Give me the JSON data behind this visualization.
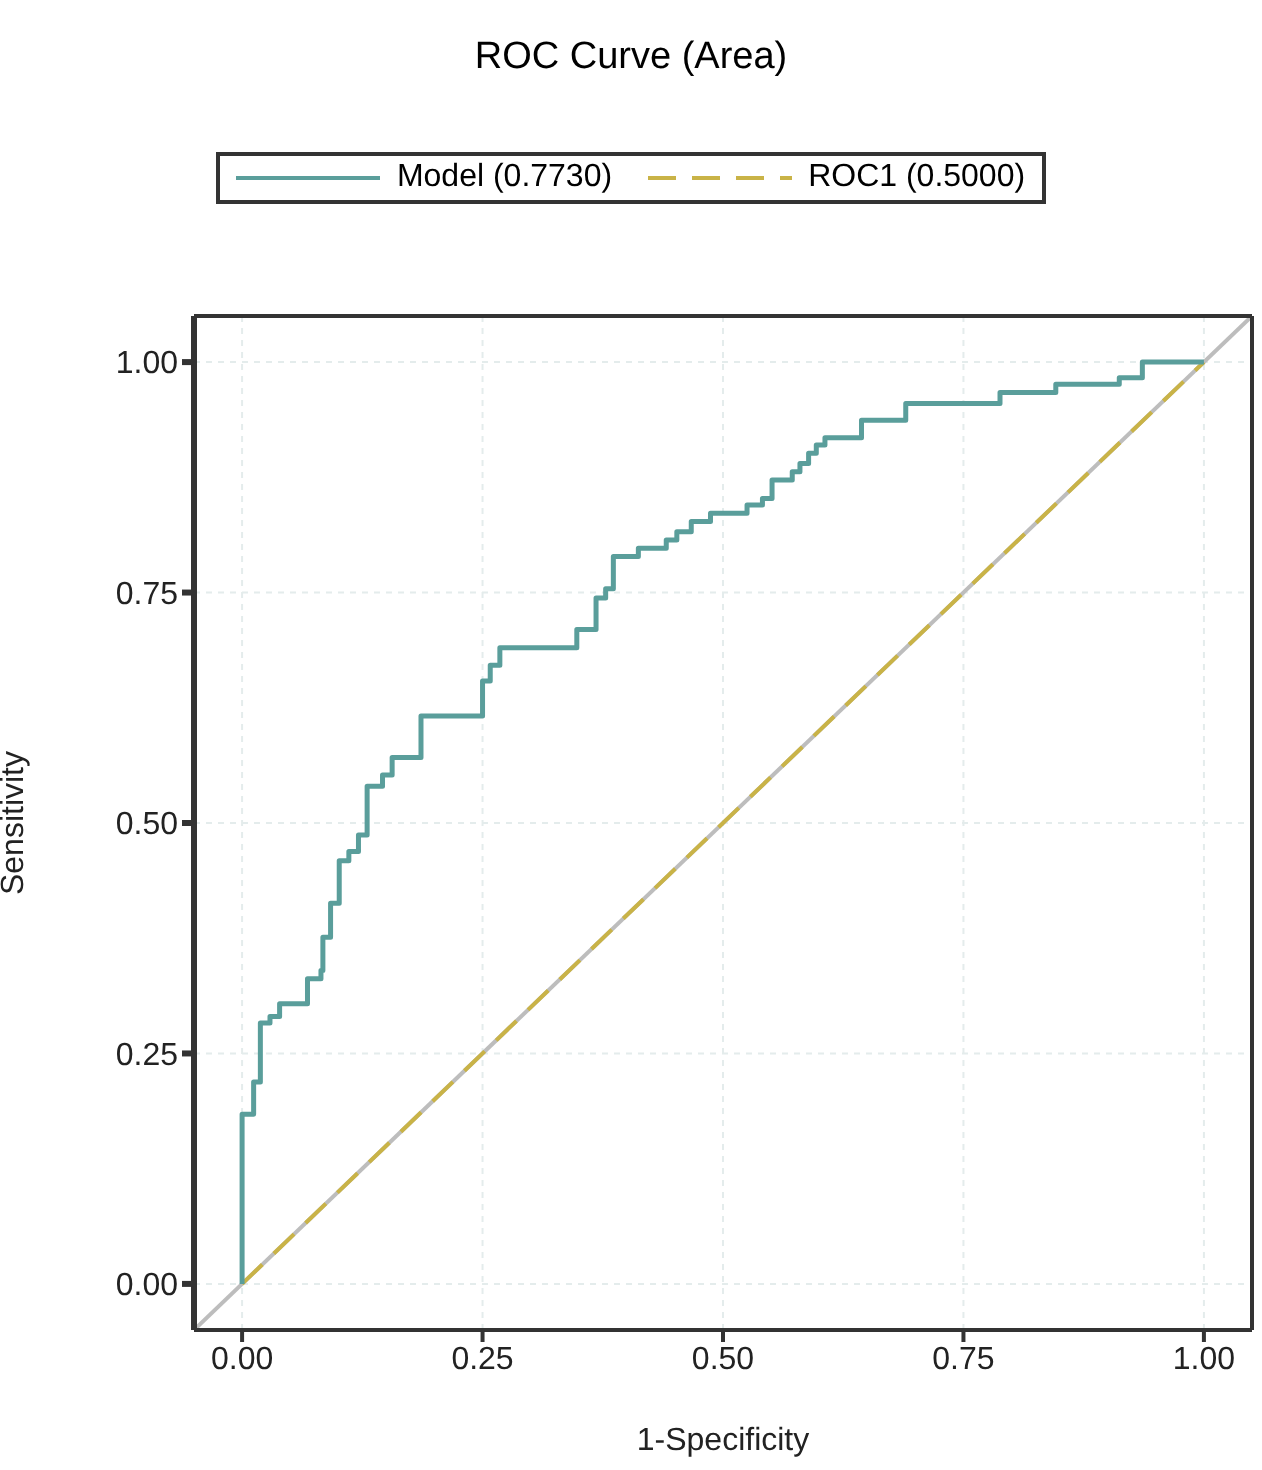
{
  "chart_data": {
    "type": "step",
    "title": "ROC Curve (Area)",
    "xlabel": "1-Specificity",
    "ylabel": "Sensitivity",
    "xlim": [
      -0.05,
      1.05
    ],
    "ylim": [
      -0.05,
      1.05
    ],
    "xticks": [
      {
        "value": 0,
        "label": "0.00"
      },
      {
        "value": 0.25,
        "label": "0.25"
      },
      {
        "value": 0.5,
        "label": "0.50"
      },
      {
        "value": 0.75,
        "label": "0.75"
      },
      {
        "value": 1,
        "label": "1.00"
      }
    ],
    "yticks": [
      {
        "value": 0,
        "label": "0.00"
      },
      {
        "value": 0.25,
        "label": "0.25"
      },
      {
        "value": 0.5,
        "label": "0.50"
      },
      {
        "value": 0.75,
        "label": "0.75"
      },
      {
        "value": 1,
        "label": "1.00"
      }
    ],
    "grid": true,
    "legend": "top",
    "line_style": "solid",
    "marker": "none",
    "series": [
      {
        "type": "line",
        "color": "#bdbdbd",
        "x": [
          -0.05,
          1.05
        ],
        "values": [
          -0.05,
          1.05
        ]
      },
      {
        "type": "line",
        "name": "ROC1 (0.5000)",
        "color": "#c9b347",
        "line_style": "dashed",
        "x": [
          0,
          1
        ],
        "values": [
          0,
          1
        ]
      },
      {
        "name": "Model (0.7730)",
        "color": "#5a9e9b",
        "x": [
          0,
          0,
          0.012,
          0.019,
          0.029,
          0.039,
          0.068,
          0.082,
          0.084,
          0.092,
          0.101,
          0.111,
          0.121,
          0.13,
          0.146,
          0.156,
          0.186,
          0.25,
          0.258,
          0.268,
          0.348,
          0.368,
          0.378,
          0.386,
          0.412,
          0.441,
          0.452,
          0.467,
          0.487,
          0.525,
          0.541,
          0.551,
          0.572,
          0.58,
          0.589,
          0.597,
          0.606,
          0.644,
          0.69,
          0.788,
          0.846,
          0.912,
          0.936,
          1.0
        ],
        "values": [
          0,
          0.184,
          0.219,
          0.283,
          0.29,
          0.304,
          0.331,
          0.34,
          0.376,
          0.413,
          0.459,
          0.469,
          0.487,
          0.54,
          0.552,
          0.571,
          0.616,
          0.654,
          0.671,
          0.69,
          0.71,
          0.744,
          0.754,
          0.789,
          0.798,
          0.807,
          0.816,
          0.827,
          0.836,
          0.845,
          0.852,
          0.872,
          0.881,
          0.89,
          0.901,
          0.91,
          0.918,
          0.937,
          0.955,
          0.967,
          0.976,
          0.983,
          1.0,
          1.0
        ]
      }
    ]
  }
}
